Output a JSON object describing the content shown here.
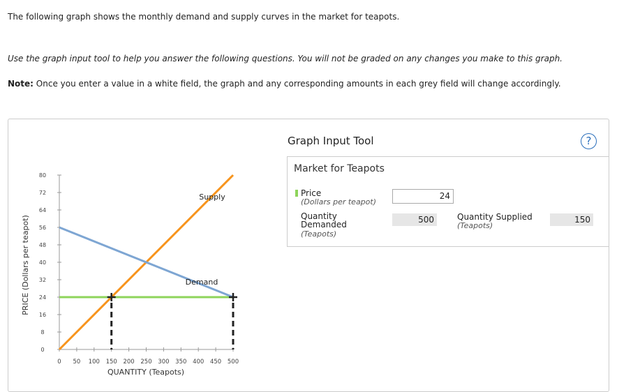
{
  "header": {
    "intro": "The following graph shows the monthly demand and supply curves in the market for teapots.",
    "instruction": "Use the graph input tool to help you answer the following questions. You will not be graded on any changes you make to this graph.",
    "note_label": "Note:",
    "note": "Once you enter a value in a white field, the graph and any corresponding amounts in each grey field will change accordingly."
  },
  "chart_data": {
    "type": "line",
    "x_label": "QUANTITY (Teapots)",
    "y_label": "PRICE (Dollars per teapot)",
    "xlim": [
      0,
      500
    ],
    "ylim": [
      0,
      80
    ],
    "xticks": [
      0,
      50,
      100,
      150,
      200,
      250,
      300,
      350,
      400,
      450,
      500
    ],
    "yticks": [
      0,
      8,
      16,
      24,
      32,
      40,
      48,
      56,
      64,
      72,
      80
    ],
    "series": [
      {
        "name": "Supply",
        "color": "#f7941d",
        "x": [
          0,
          500
        ],
        "values": [
          0,
          80
        ]
      },
      {
        "name": "Demand",
        "color": "#7ea6d3",
        "x": [
          0,
          500
        ],
        "values": [
          56,
          24
        ]
      }
    ],
    "price_line": {
      "color": "#8ed45b",
      "x": [
        0,
        500
      ],
      "values": [
        24,
        24
      ]
    },
    "markers": {
      "x": [
        150,
        500
      ],
      "values": [
        24,
        24
      ]
    }
  },
  "tool": {
    "title": "Graph Input Tool",
    "help": "?",
    "market": "Market for Teapots",
    "price_label": "Price",
    "price_unit": "(Dollars per teapot)",
    "price": 24,
    "qd_label": "Quantity Demanded",
    "qd_unit": "(Teapots)",
    "qd": 500,
    "qs_label": "Quantity Supplied",
    "qs_unit": "(Teapots)",
    "qs": 150
  }
}
